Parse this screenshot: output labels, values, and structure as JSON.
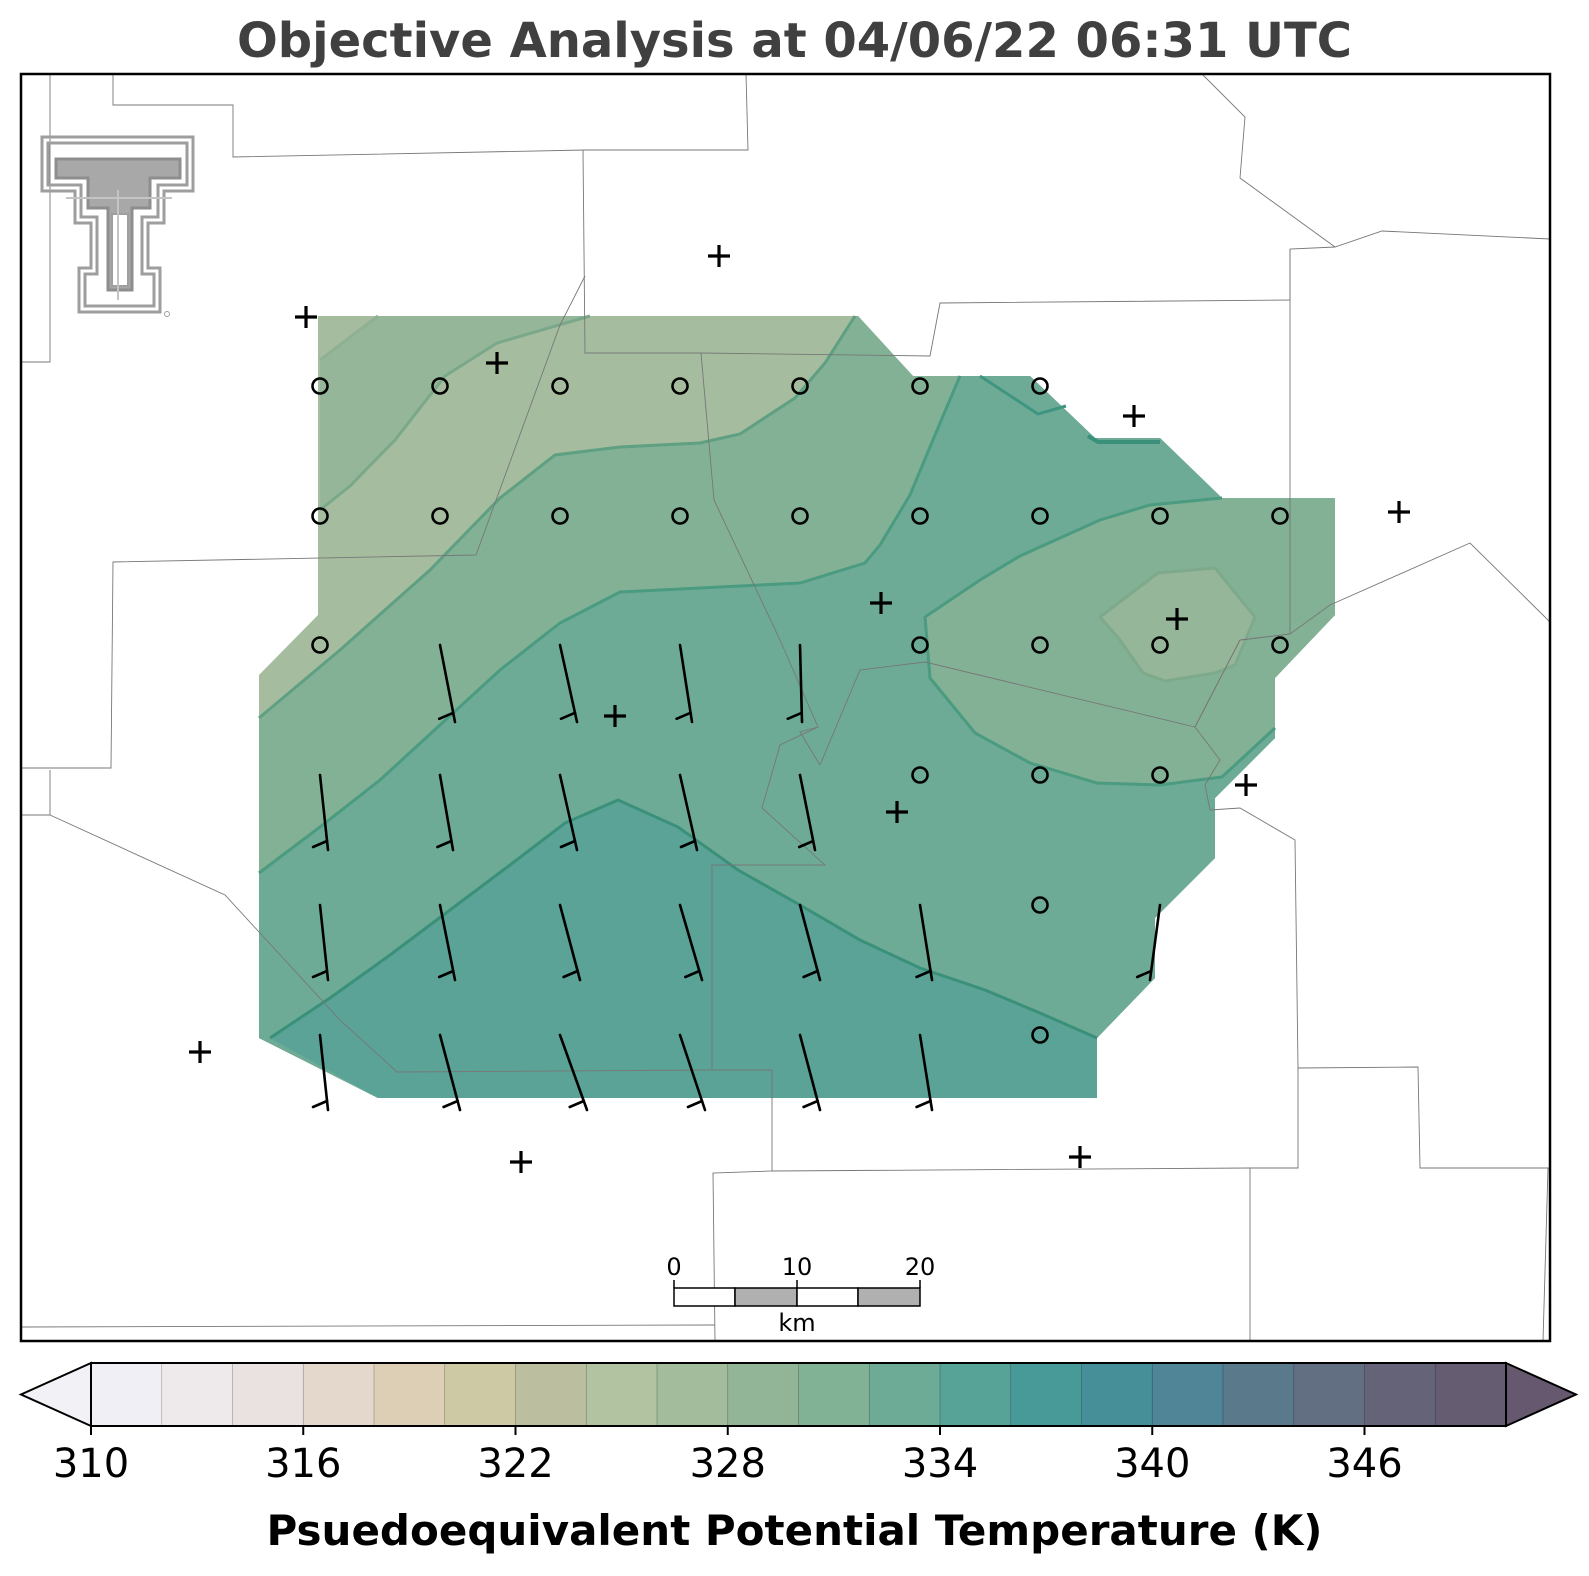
{
  "title": "Objective Analysis at 04/06/22 06:31 UTC",
  "colorbar": {
    "label": "Psuedoequivalent Potential Temperature (K)",
    "min": 310,
    "max": 350,
    "step": 2,
    "extend": "both",
    "tick_labels": [
      "310",
      "316",
      "322",
      "328",
      "334",
      "340",
      "346"
    ],
    "colors": [
      "#f0eff5",
      "#eeeaec",
      "#e9e2e0",
      "#e4d7cb",
      "#ddcfb5",
      "#cdc9a4",
      "#bbbf9f",
      "#b1c3a1",
      "#a2bc9c",
      "#93b597",
      "#82b296",
      "#6dab96",
      "#58a397",
      "#489a99",
      "#468e98",
      "#4f8596",
      "#5a7a8c",
      "#626e81",
      "#646377",
      "#665c72"
    ],
    "under_color": "#f2f1f6",
    "over_color": "#66596f"
  },
  "scale_bar": {
    "labels": [
      "0",
      "10",
      "20"
    ],
    "unit": "km"
  },
  "logo": "texas-tech-double-t-logo",
  "map": {
    "analysis_colors": {
      "c324": "#a5bd9e",
      "c326": "#95b698",
      "c328": "#83b196",
      "c330": "#6dab97",
      "c332": "#5aa396"
    },
    "contour_color": "#3d9478",
    "station_marker": "plus",
    "grid_marker": "circle",
    "wind_barbs": "present"
  }
}
